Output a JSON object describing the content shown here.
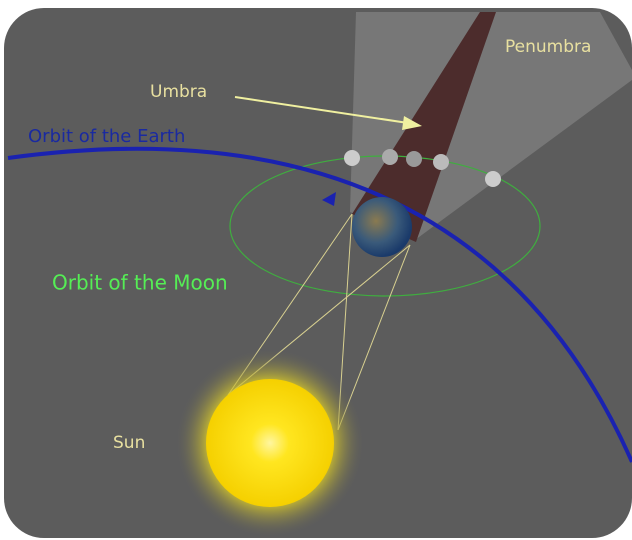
{
  "labels": {
    "penumbra": "Penumbra",
    "umbra": "Umbra",
    "earth_orbit": "Orbit of the Earth",
    "moon_orbit": "Orbit of the Moon",
    "sun": "Sun"
  }
}
